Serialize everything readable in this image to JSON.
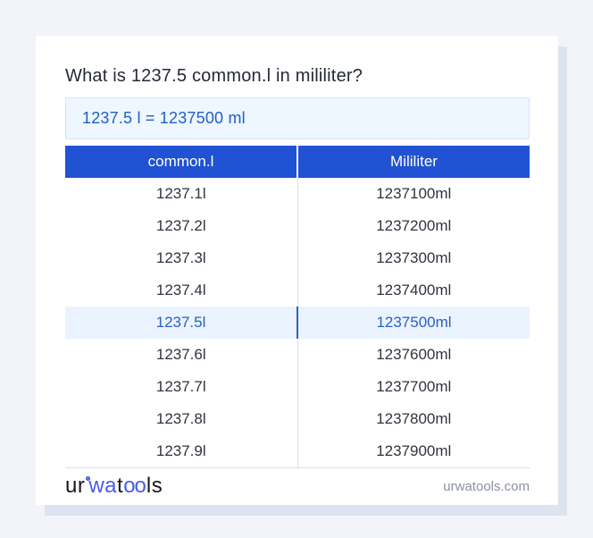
{
  "card": {
    "title": "What is 1237.5 common.l in mililiter?",
    "result": "1237.5 l = 1237500 ml"
  },
  "table": {
    "headers": [
      "common.l",
      "Mililiter"
    ],
    "rows": [
      {
        "common_l": "1237.1l",
        "mililiter": "1237100ml",
        "highlighted": false
      },
      {
        "common_l": "1237.2l",
        "mililiter": "1237200ml",
        "highlighted": false
      },
      {
        "common_l": "1237.3l",
        "mililiter": "1237300ml",
        "highlighted": false
      },
      {
        "common_l": "1237.4l",
        "mililiter": "1237400ml",
        "highlighted": false
      },
      {
        "common_l": "1237.5l",
        "mililiter": "1237500ml",
        "highlighted": true
      },
      {
        "common_l": "1237.6l",
        "mililiter": "1237600ml",
        "highlighted": false
      },
      {
        "common_l": "1237.7l",
        "mililiter": "1237700ml",
        "highlighted": false
      },
      {
        "common_l": "1237.8l",
        "mililiter": "1237800ml",
        "highlighted": false
      },
      {
        "common_l": "1237.9l",
        "mililiter": "1237900ml",
        "highlighted": false
      }
    ]
  },
  "footer": {
    "logo_segments": [
      {
        "text": "ur",
        "color": "dark"
      },
      {
        "text": "wa",
        "color": "blue"
      },
      {
        "text": "t",
        "color": "dark"
      },
      {
        "text": "oo",
        "color": "blue"
      },
      {
        "text": "ls",
        "color": "dark"
      }
    ],
    "logo_degree_icon": "degree-ring",
    "site": "urwatools.com"
  },
  "colors": {
    "page_background": "#f2f4f9",
    "card_background": "#ffffff",
    "card_shadow": "#dde3ef",
    "header_blue": "#2152d4",
    "header_text": "#ffffff",
    "result_background": "#eef6fe",
    "result_border": "#d7e5f7",
    "result_text": "#2160c4",
    "highlight_background": "#eaf3fe",
    "highlight_text": "#2a60c8",
    "cell_text": "#30343f",
    "logo_blue": "#4a5af0",
    "logo_dark": "#15171b",
    "site_text": "#8a92a2"
  }
}
